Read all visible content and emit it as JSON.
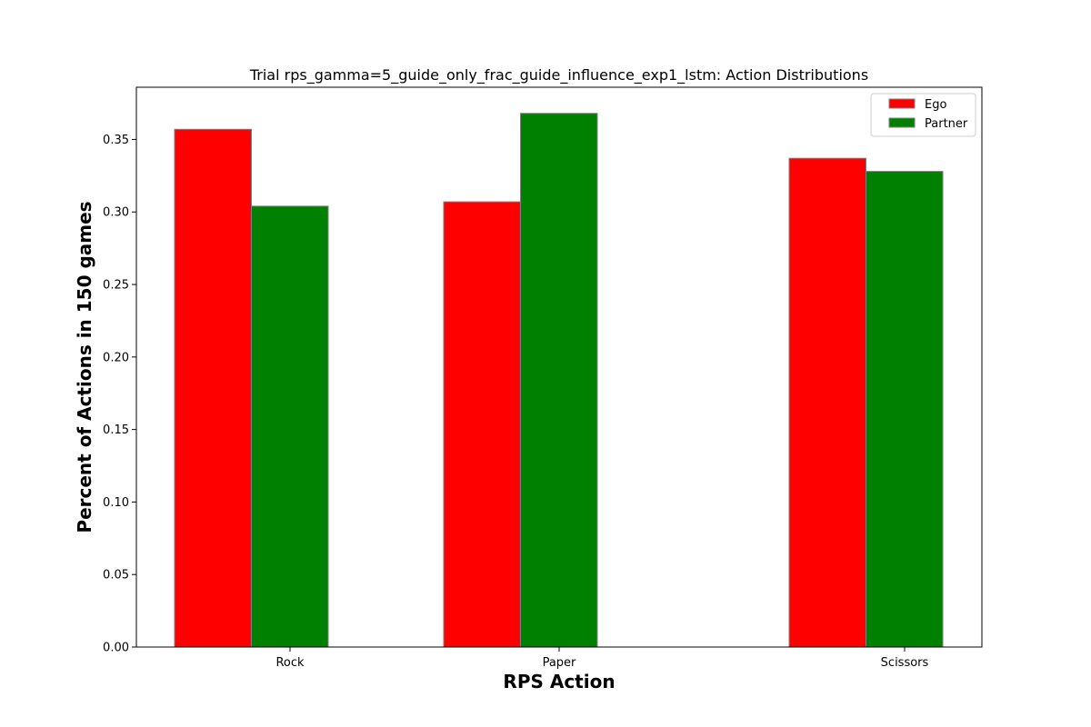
{
  "chart_data": {
    "type": "bar",
    "title": "Trial rps_gamma=5_guide_only_frac_guide_influence_exp1_lstm: Action Distributions",
    "xlabel": "RPS Action",
    "ylabel": "Percent of Actions in 150 games",
    "categories": [
      "Rock",
      "Paper",
      "Scissors"
    ],
    "series": [
      {
        "name": "Ego",
        "color": "#ff0000",
        "values": [
          0.357,
          0.307,
          0.337
        ]
      },
      {
        "name": "Partner",
        "color": "#008000",
        "values": [
          0.304,
          0.368,
          0.328
        ]
      }
    ],
    "ylim": [
      0,
      0.386
    ],
    "yticks": [
      "0.00",
      "0.05",
      "0.10",
      "0.15",
      "0.20",
      "0.25",
      "0.30",
      "0.35"
    ],
    "legend_position": "top-right",
    "grid": false
  }
}
